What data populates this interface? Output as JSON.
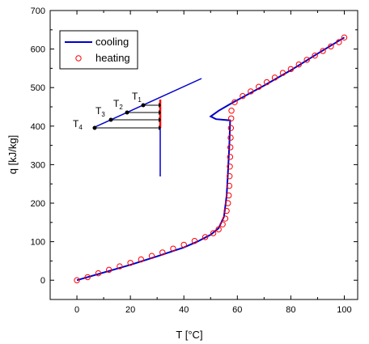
{
  "chart_data": {
    "type": "line",
    "xlabel": "T [°C]",
    "ylabel": "q [kJ/kg]",
    "xlim": [
      -10,
      105
    ],
    "ylim": [
      -50,
      700
    ],
    "x_ticks": [
      0,
      20,
      40,
      60,
      80,
      100
    ],
    "y_ticks": [
      0,
      100,
      200,
      300,
      400,
      500,
      600,
      700
    ],
    "legend_position": "top-left",
    "series": [
      {
        "name": "cooling",
        "style": "line",
        "color": "#0000cc",
        "points": [
          [
            0,
            0
          ],
          [
            10,
            20
          ],
          [
            20,
            40
          ],
          [
            30,
            62
          ],
          [
            40,
            85
          ],
          [
            45,
            100
          ],
          [
            50,
            118
          ],
          [
            53,
            135
          ],
          [
            55,
            165
          ],
          [
            56,
            220
          ],
          [
            56.5,
            280
          ],
          [
            57,
            350
          ],
          [
            57.3,
            415
          ],
          [
            52,
            418
          ],
          [
            50,
            425
          ],
          [
            53,
            440
          ],
          [
            58,
            460
          ],
          [
            70,
            505
          ],
          [
            80,
            545
          ],
          [
            90,
            588
          ],
          [
            100,
            630
          ]
        ]
      },
      {
        "name": "heating",
        "style": "markers",
        "color": "#ff0000",
        "points": [
          [
            0,
            0
          ],
          [
            4,
            8
          ],
          [
            8,
            18
          ],
          [
            12,
            27
          ],
          [
            16,
            36
          ],
          [
            20,
            45
          ],
          [
            24,
            54
          ],
          [
            28,
            63
          ],
          [
            32,
            72
          ],
          [
            36,
            82
          ],
          [
            40,
            92
          ],
          [
            44,
            102
          ],
          [
            48,
            112
          ],
          [
            51,
            122
          ],
          [
            53,
            132
          ],
          [
            54.5,
            145
          ],
          [
            55.5,
            160
          ],
          [
            56,
            180
          ],
          [
            56.5,
            200
          ],
          [
            56.8,
            220
          ],
          [
            57,
            245
          ],
          [
            57.1,
            270
          ],
          [
            57.2,
            295
          ],
          [
            57.3,
            320
          ],
          [
            57.4,
            345
          ],
          [
            57.5,
            370
          ],
          [
            57.6,
            395
          ],
          [
            57.7,
            420
          ],
          [
            57.8,
            440
          ],
          [
            59,
            462
          ],
          [
            62,
            478
          ],
          [
            65,
            490
          ],
          [
            68,
            502
          ],
          [
            71,
            514
          ],
          [
            74,
            526
          ],
          [
            77,
            538
          ],
          [
            80,
            548
          ],
          [
            83,
            560
          ],
          [
            86,
            572
          ],
          [
            89,
            583
          ],
          [
            92,
            595
          ],
          [
            95,
            607
          ],
          [
            98,
            618
          ],
          [
            100,
            630
          ]
        ]
      }
    ],
    "inset": {
      "labels": [
        {
          "id": "T1",
          "main": "T",
          "sub": "1"
        },
        {
          "id": "T2",
          "main": "T",
          "sub": "2"
        },
        {
          "id": "T3",
          "main": "T",
          "sub": "3"
        },
        {
          "id": "T4",
          "main": "T",
          "sub": "4"
        }
      ]
    }
  }
}
